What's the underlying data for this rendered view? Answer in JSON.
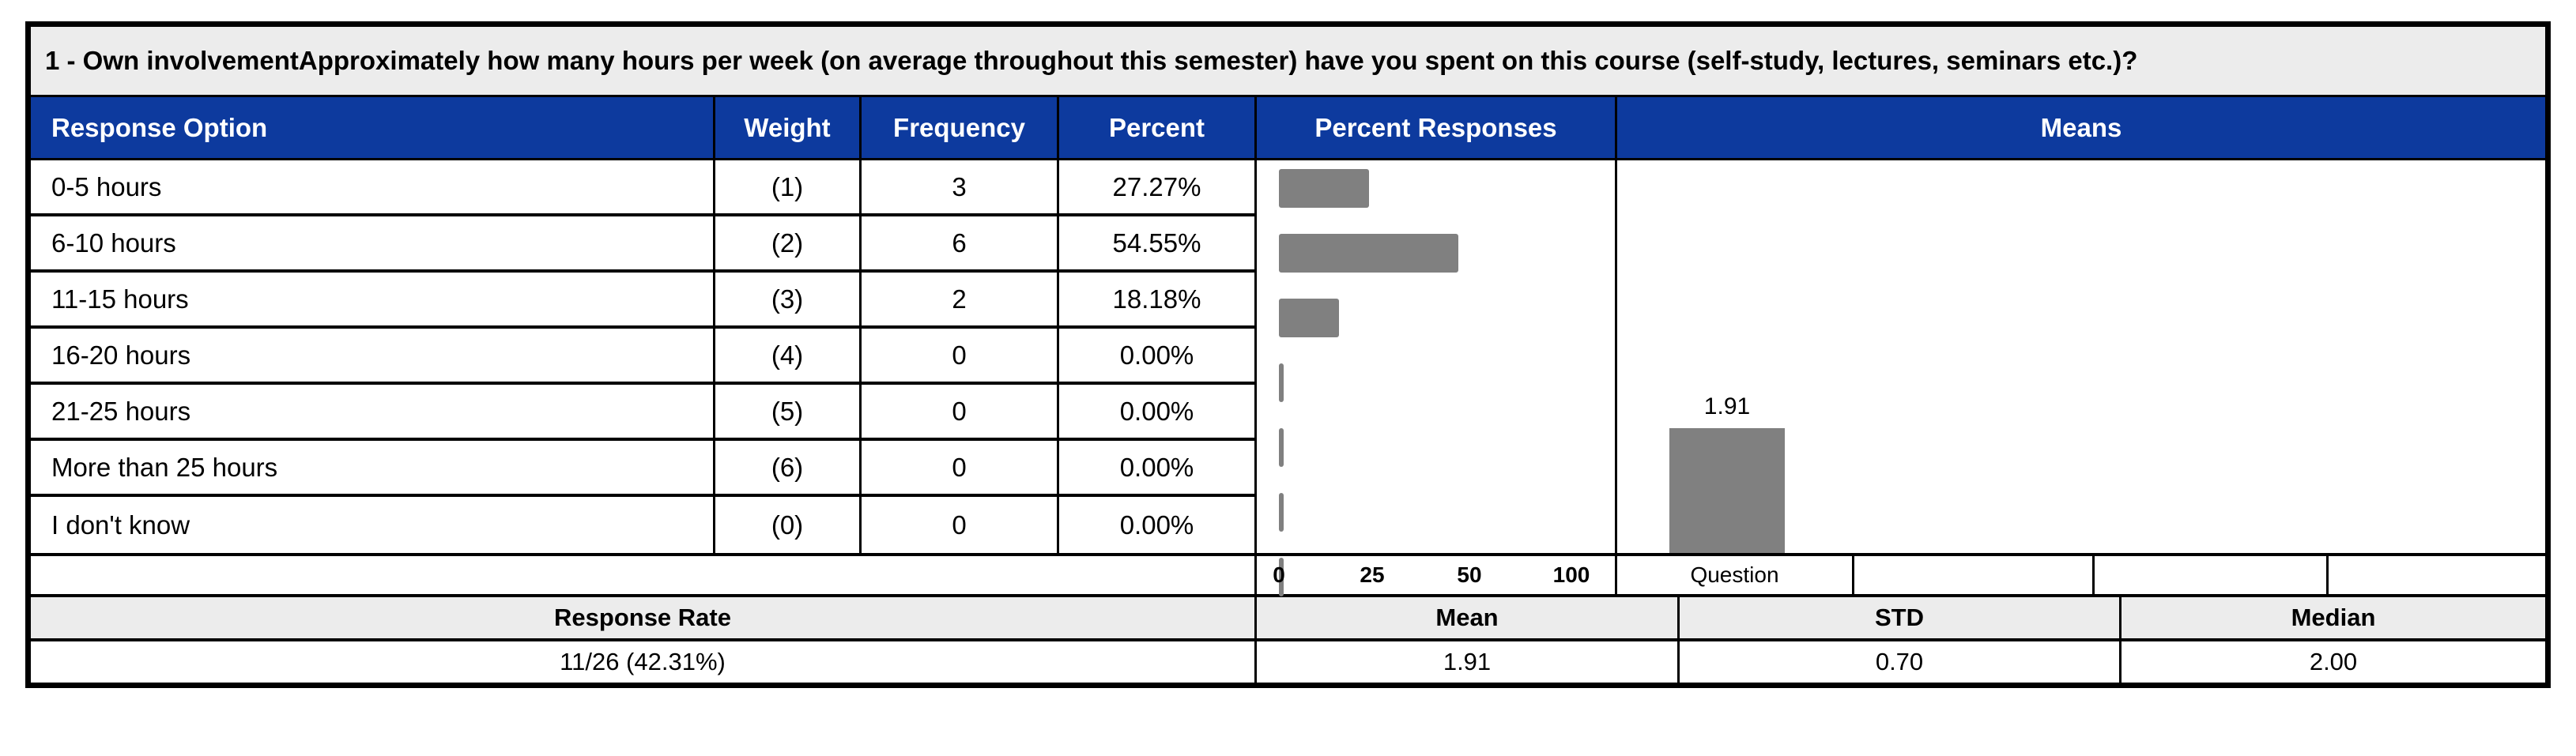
{
  "question": {
    "title": "1 - Own involvementApproximately how many hours per week (on average throughout this semester) have you spent on this course (self-study, lectures, seminars etc.)?"
  },
  "table": {
    "headers": {
      "response_option": "Response Option",
      "weight": "Weight",
      "frequency": "Frequency",
      "percent": "Percent",
      "percent_responses": "Percent Responses",
      "means": "Means"
    },
    "rows": [
      {
        "option": "0-5 hours",
        "weight": "(1)",
        "frequency": "3",
        "percent": "27.27%",
        "percent_value": 27.27
      },
      {
        "option": "6-10 hours",
        "weight": "(2)",
        "frequency": "6",
        "percent": "54.55%",
        "percent_value": 54.55
      },
      {
        "option": "11-15 hours",
        "weight": "(3)",
        "frequency": "2",
        "percent": "18.18%",
        "percent_value": 18.18
      },
      {
        "option": "16-20 hours",
        "weight": "(4)",
        "frequency": "0",
        "percent": "0.00%",
        "percent_value": 0
      },
      {
        "option": "21-25 hours",
        "weight": "(5)",
        "frequency": "0",
        "percent": "0.00%",
        "percent_value": 0
      },
      {
        "option": "More than 25 hours",
        "weight": "(6)",
        "frequency": "0",
        "percent": "0.00%",
        "percent_value": 0
      },
      {
        "option": "I don't know",
        "weight": "(0)",
        "frequency": "0",
        "percent": "0.00%",
        "percent_value": 0
      }
    ]
  },
  "percent_axis": {
    "ticks": [
      "0",
      "25",
      "50",
      "100"
    ]
  },
  "means_chart": {
    "bar_label": "1.91",
    "value": 1.91,
    "scale_max": 6,
    "question_label": "Question"
  },
  "footer": {
    "headers": {
      "response_rate": "Response Rate",
      "mean": "Mean",
      "std": "STD",
      "median": "Median"
    },
    "values": {
      "response_rate": "11/26 (42.31%)",
      "mean": "1.91",
      "std": "0.70",
      "median": "2.00"
    }
  },
  "colors": {
    "header_bg": "#0D3A9E",
    "bar_color": "#808080",
    "title_bg": "#ECECEC",
    "footer_header_bg": "#ECECEC",
    "border_color": "#000000"
  },
  "chart_data": [
    {
      "type": "bar",
      "orientation": "horizontal",
      "title": "Percent Responses",
      "categories": [
        "0-5 hours",
        "6-10 hours",
        "11-15 hours",
        "16-20 hours",
        "21-25 hours",
        "More than 25 hours",
        "I don't know"
      ],
      "values": [
        27.27,
        54.55,
        18.18,
        0,
        0,
        0,
        0
      ],
      "xlabel": "",
      "ylabel": "",
      "xlim": [
        0,
        100
      ],
      "x_ticks": [
        0,
        25,
        50,
        100
      ],
      "grid": false,
      "legend": false,
      "bar_color": "#808080"
    },
    {
      "type": "bar",
      "orientation": "vertical",
      "title": "Means",
      "categories": [
        "Question"
      ],
      "values": [
        1.91
      ],
      "data_labels": [
        "1.91"
      ],
      "ylim": [
        0,
        6
      ],
      "grid": false,
      "legend": false,
      "bar_color": "#808080"
    }
  ]
}
